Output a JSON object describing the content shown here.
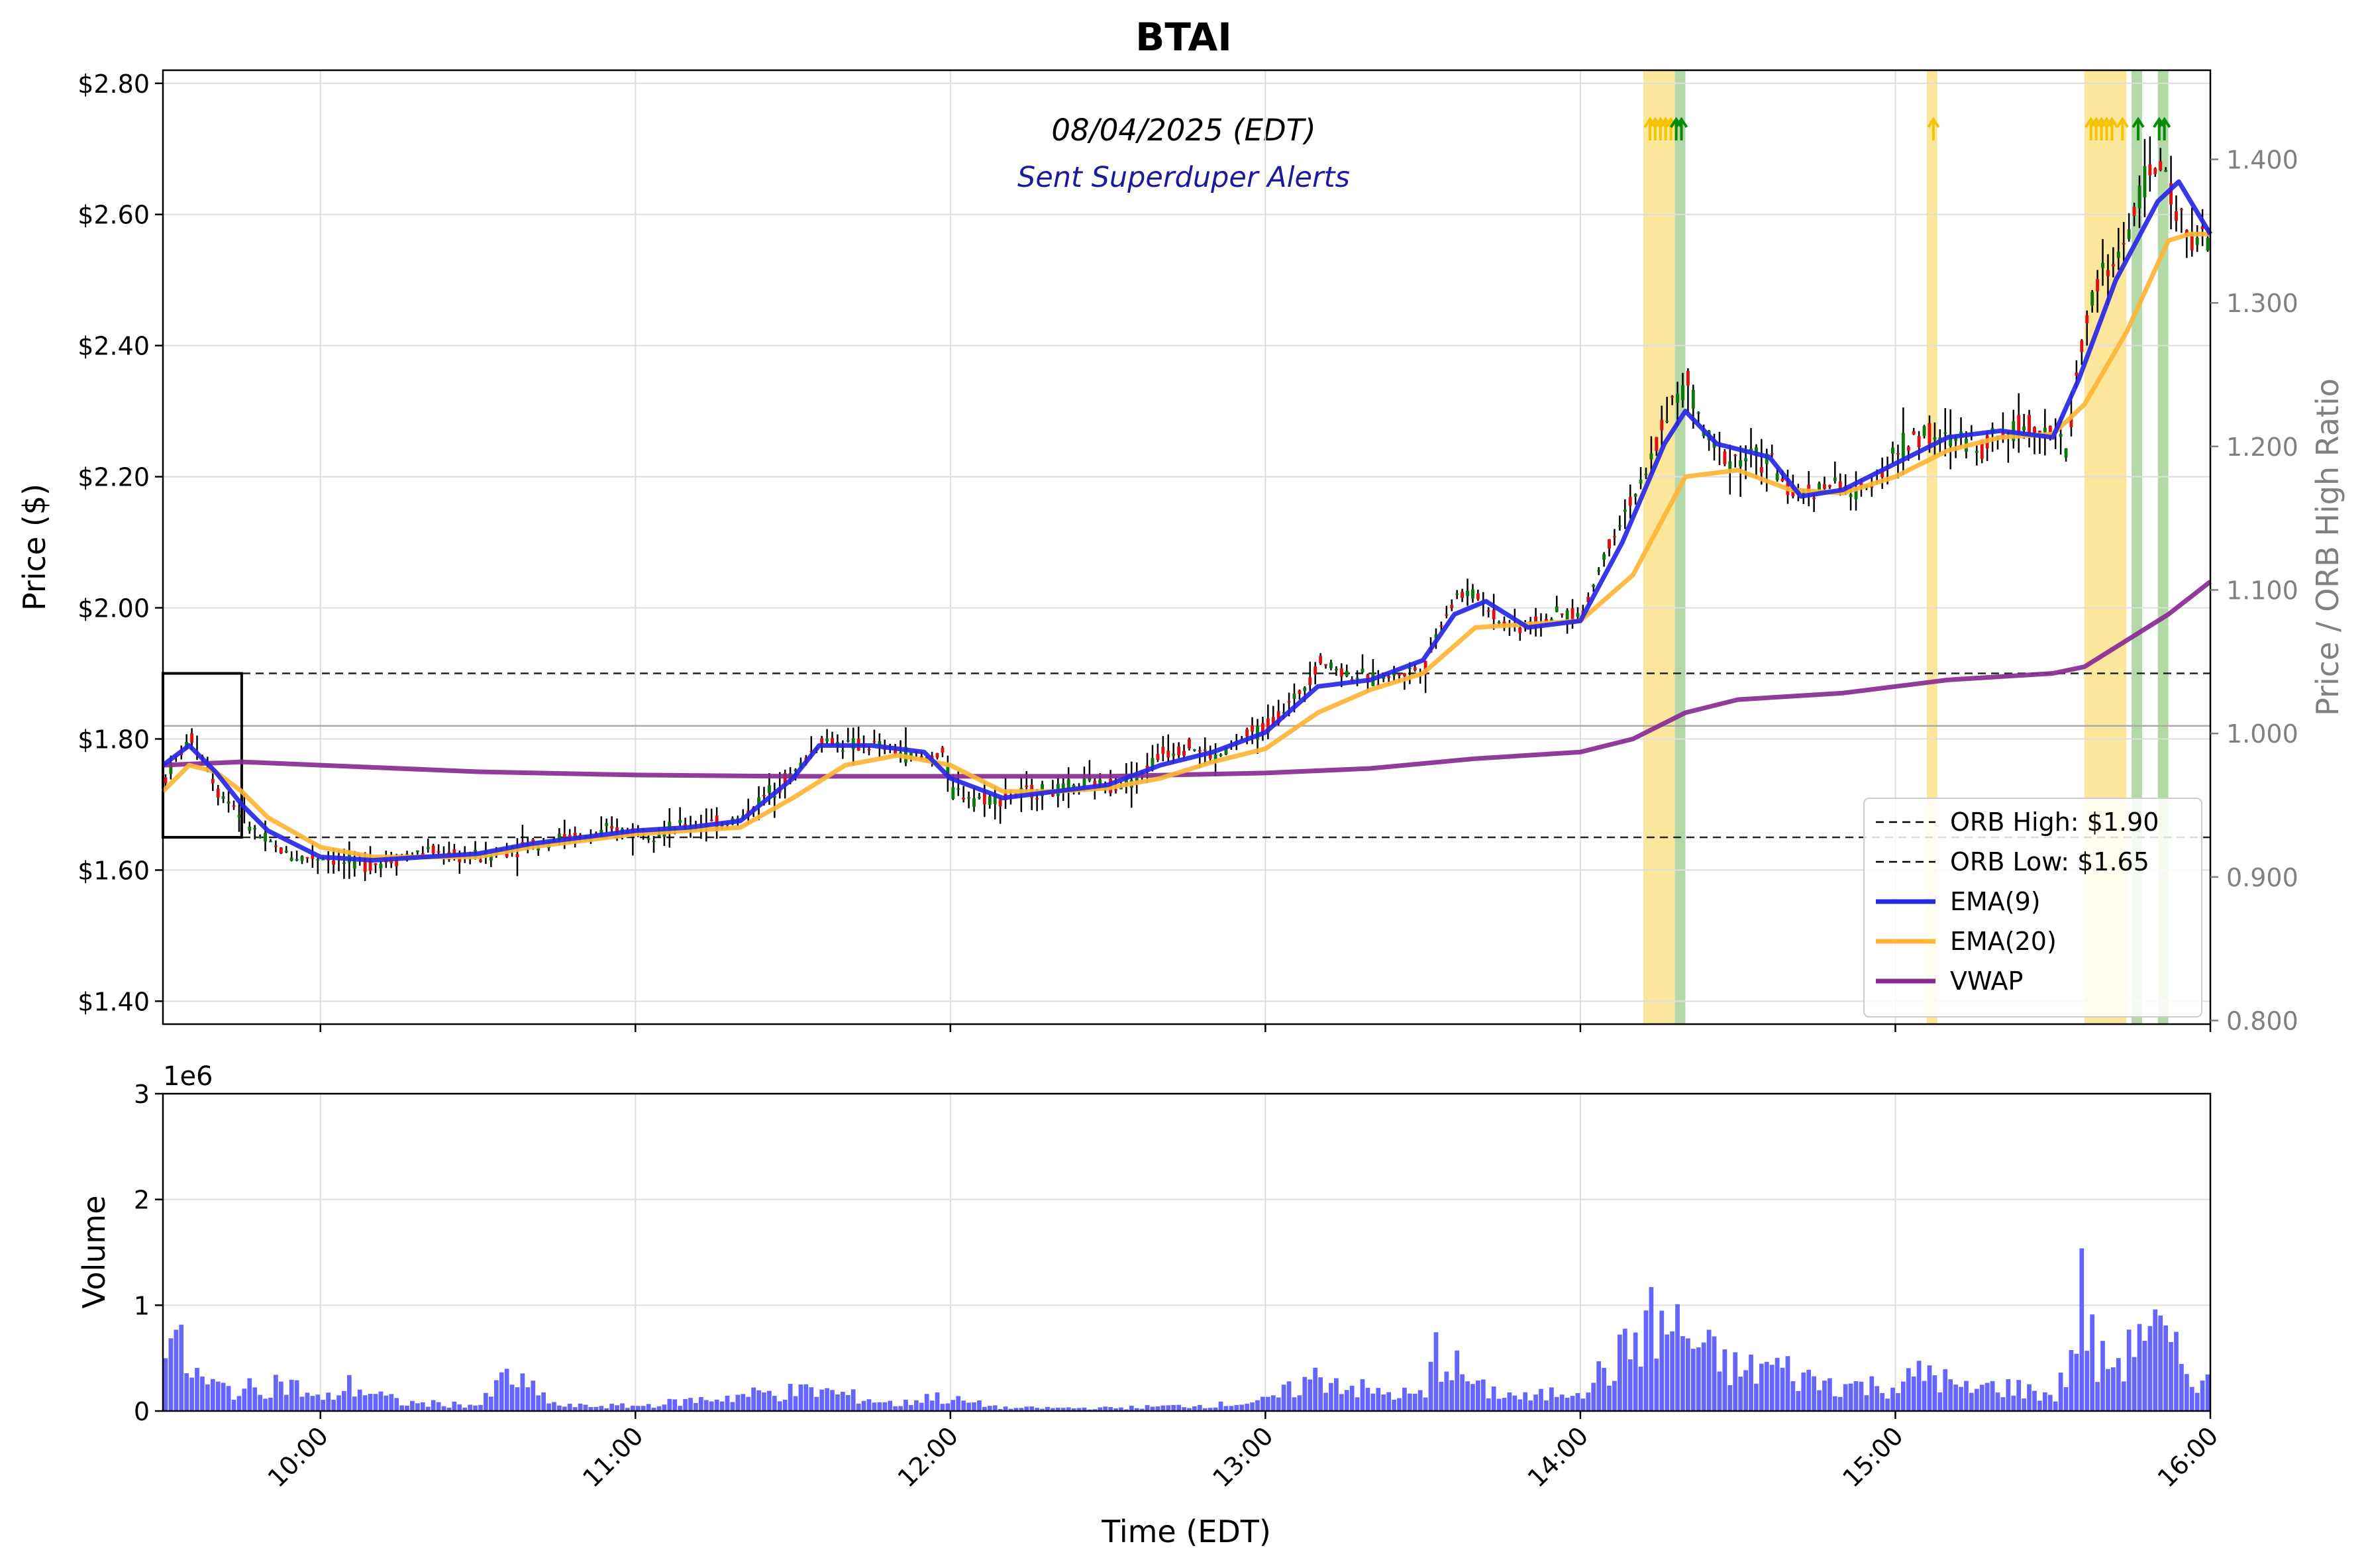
{
  "chart_data": [
    {
      "type": "candlestick",
      "title": "BTAI",
      "date_label": "08/04/2025 (EDT)",
      "subtitle": "Sent Superduper Alerts",
      "ylabel": "Price ($)",
      "y2label": "Price / ORB High Ratio",
      "ylim": [
        1.365,
        2.82
      ],
      "y2lim": [
        0.7975,
        1.4621
      ],
      "xlim": [
        "09:30",
        "16:00"
      ],
      "yticks": [
        "$1.40",
        "$1.60",
        "$1.80",
        "$2.00",
        "$2.20",
        "$2.40",
        "$2.60",
        "$2.80"
      ],
      "ytick_values": [
        1.4,
        1.6,
        1.8,
        2.0,
        2.2,
        2.4,
        2.6,
        2.8
      ],
      "y2ticks": [
        "0.800",
        "0.900",
        "1.000",
        "1.100",
        "1.200",
        "1.300",
        "1.400"
      ],
      "y2tick_values": [
        0.8,
        0.9,
        1.0,
        1.1,
        1.2,
        1.3,
        1.4
      ],
      "grid": true,
      "legend_position": "lower right",
      "legend": [
        {
          "label": "ORB High: $1.90",
          "style": "dashed",
          "color": "#000000"
        },
        {
          "label": "ORB Low: $1.65",
          "style": "dashed",
          "color": "#000000"
        },
        {
          "label": "EMA(9)",
          "style": "solid",
          "color": "#2727e6"
        },
        {
          "label": "EMA(20)",
          "style": "solid",
          "color": "#fcb535"
        },
        {
          "label": "VWAP",
          "style": "solid",
          "color": "#882a92"
        }
      ],
      "orb_high": 1.9,
      "orb_low": 1.65,
      "orb_window": [
        "09:30",
        "09:45"
      ],
      "ratio_reference_price": 1.82,
      "highlight_bands": [
        {
          "start": "14:12",
          "end": "14:18",
          "color": "#fbe28a"
        },
        {
          "start": "14:18",
          "end": "14:20",
          "color": "#a7d29a"
        },
        {
          "start": "15:06",
          "end": "15:08",
          "color": "#fbe28a"
        },
        {
          "start": "15:36",
          "end": "15:42",
          "color": "#fbe28a"
        },
        {
          "start": "15:42",
          "end": "15:44",
          "color": "#fbe28a"
        },
        {
          "start": "15:45",
          "end": "15:47",
          "color": "#a7d29a"
        },
        {
          "start": "15:50",
          "end": "15:52",
          "color": "#a7d29a"
        }
      ],
      "alert_markers": [
        {
          "time": "14:13",
          "color": "#f5c400"
        },
        {
          "time": "14:14",
          "color": "#f5c400"
        },
        {
          "time": "14:15",
          "color": "#f5c400"
        },
        {
          "time": "14:16",
          "color": "#f5c400"
        },
        {
          "time": "14:17",
          "color": "#f5c400"
        },
        {
          "time": "14:18",
          "color": "#0a8a0a"
        },
        {
          "time": "14:19",
          "color": "#0a8a0a"
        },
        {
          "time": "15:07",
          "color": "#f5c400"
        },
        {
          "time": "15:37",
          "color": "#f5c400"
        },
        {
          "time": "15:38",
          "color": "#f5c400"
        },
        {
          "time": "15:39",
          "color": "#f5c400"
        },
        {
          "time": "15:40",
          "color": "#f5c400"
        },
        {
          "time": "15:41",
          "color": "#f5c400"
        },
        {
          "time": "15:43",
          "color": "#f5c400"
        },
        {
          "time": "15:46",
          "color": "#0a8a0a"
        },
        {
          "time": "15:50",
          "color": "#0a8a0a"
        },
        {
          "time": "15:51",
          "color": "#0a8a0a"
        }
      ],
      "price_path": [
        [
          "09:30",
          1.74
        ],
        [
          "09:32",
          1.77
        ],
        [
          "09:35",
          1.8
        ],
        [
          "09:38",
          1.76
        ],
        [
          "09:40",
          1.72
        ],
        [
          "09:43",
          1.7
        ],
        [
          "09:45",
          1.68
        ],
        [
          "09:48",
          1.65
        ],
        [
          "09:52",
          1.63
        ],
        [
          "09:55",
          1.62
        ],
        [
          "10:00",
          1.62
        ],
        [
          "10:05",
          1.61
        ],
        [
          "10:10",
          1.61
        ],
        [
          "10:15",
          1.62
        ],
        [
          "10:20",
          1.63
        ],
        [
          "10:25",
          1.62
        ],
        [
          "10:30",
          1.62
        ],
        [
          "10:35",
          1.63
        ],
        [
          "10:40",
          1.64
        ],
        [
          "10:45",
          1.65
        ],
        [
          "10:50",
          1.65
        ],
        [
          "10:55",
          1.66
        ],
        [
          "11:00",
          1.66
        ],
        [
          "11:05",
          1.66
        ],
        [
          "11:10",
          1.67
        ],
        [
          "11:15",
          1.67
        ],
        [
          "11:20",
          1.68
        ],
        [
          "11:25",
          1.72
        ],
        [
          "11:30",
          1.75
        ],
        [
          "11:35",
          1.8
        ],
        [
          "11:40",
          1.79
        ],
        [
          "11:45",
          1.79
        ],
        [
          "11:50",
          1.78
        ],
        [
          "11:55",
          1.77
        ],
        [
          "11:58",
          1.78
        ],
        [
          "12:00",
          1.72
        ],
        [
          "12:05",
          1.71
        ],
        [
          "12:10",
          1.71
        ],
        [
          "12:15",
          1.72
        ],
        [
          "12:20",
          1.72
        ],
        [
          "12:25",
          1.73
        ],
        [
          "12:30",
          1.73
        ],
        [
          "12:35",
          1.74
        ],
        [
          "12:40",
          1.78
        ],
        [
          "12:45",
          1.79
        ],
        [
          "12:50",
          1.77
        ],
        [
          "12:55",
          1.8
        ],
        [
          "13:00",
          1.82
        ],
        [
          "13:05",
          1.86
        ],
        [
          "13:10",
          1.92
        ],
        [
          "13:15",
          1.9
        ],
        [
          "13:20",
          1.89
        ],
        [
          "13:25",
          1.9
        ],
        [
          "13:30",
          1.91
        ],
        [
          "13:33",
          1.98
        ],
        [
          "13:36",
          2.02
        ],
        [
          "13:40",
          2.02
        ],
        [
          "13:44",
          1.98
        ],
        [
          "13:48",
          1.97
        ],
        [
          "13:52",
          1.98
        ],
        [
          "13:56",
          1.99
        ],
        [
          "14:00",
          1.99
        ],
        [
          "14:04",
          2.08
        ],
        [
          "14:08",
          2.15
        ],
        [
          "14:12",
          2.2
        ],
        [
          "14:16",
          2.3
        ],
        [
          "14:20",
          2.34
        ],
        [
          "14:24",
          2.25
        ],
        [
          "14:28",
          2.23
        ],
        [
          "14:32",
          2.23
        ],
        [
          "14:36",
          2.22
        ],
        [
          "14:40",
          2.17
        ],
        [
          "14:44",
          2.18
        ],
        [
          "14:48",
          2.19
        ],
        [
          "14:52",
          2.17
        ],
        [
          "14:56",
          2.2
        ],
        [
          "15:00",
          2.24
        ],
        [
          "15:05",
          2.27
        ],
        [
          "15:08",
          2.25
        ],
        [
          "15:12",
          2.26
        ],
        [
          "15:16",
          2.25
        ],
        [
          "15:20",
          2.27
        ],
        [
          "15:24",
          2.28
        ],
        [
          "15:28",
          2.28
        ],
        [
          "15:32",
          2.24
        ],
        [
          "15:35",
          2.4
        ],
        [
          "15:38",
          2.5
        ],
        [
          "15:41",
          2.52
        ],
        [
          "15:44",
          2.58
        ],
        [
          "15:47",
          2.65
        ],
        [
          "15:50",
          2.68
        ],
        [
          "15:53",
          2.6
        ],
        [
          "15:56",
          2.57
        ],
        [
          "16:00",
          2.55
        ]
      ],
      "ema9": [
        [
          "09:30",
          1.76
        ],
        [
          "09:35",
          1.79
        ],
        [
          "09:40",
          1.75
        ],
        [
          "09:45",
          1.7
        ],
        [
          "09:50",
          1.66
        ],
        [
          "10:00",
          1.62
        ],
        [
          "10:10",
          1.615
        ],
        [
          "10:20",
          1.62
        ],
        [
          "10:30",
          1.625
        ],
        [
          "10:40",
          1.64
        ],
        [
          "10:50",
          1.65
        ],
        [
          "11:00",
          1.66
        ],
        [
          "11:10",
          1.665
        ],
        [
          "11:20",
          1.675
        ],
        [
          "11:30",
          1.74
        ],
        [
          "11:35",
          1.79
        ],
        [
          "11:45",
          1.79
        ],
        [
          "11:55",
          1.78
        ],
        [
          "12:00",
          1.74
        ],
        [
          "12:10",
          1.71
        ],
        [
          "12:20",
          1.72
        ],
        [
          "12:30",
          1.73
        ],
        [
          "12:40",
          1.76
        ],
        [
          "12:50",
          1.78
        ],
        [
          "13:00",
          1.81
        ],
        [
          "13:10",
          1.88
        ],
        [
          "13:20",
          1.89
        ],
        [
          "13:30",
          1.92
        ],
        [
          "13:36",
          1.99
        ],
        [
          "13:42",
          2.01
        ],
        [
          "13:50",
          1.97
        ],
        [
          "14:00",
          1.98
        ],
        [
          "14:08",
          2.1
        ],
        [
          "14:16",
          2.25
        ],
        [
          "14:20",
          2.3
        ],
        [
          "14:26",
          2.25
        ],
        [
          "14:36",
          2.23
        ],
        [
          "14:42",
          2.17
        ],
        [
          "14:50",
          2.18
        ],
        [
          "15:00",
          2.22
        ],
        [
          "15:10",
          2.26
        ],
        [
          "15:20",
          2.27
        ],
        [
          "15:30",
          2.26
        ],
        [
          "15:35",
          2.35
        ],
        [
          "15:42",
          2.5
        ],
        [
          "15:50",
          2.62
        ],
        [
          "15:54",
          2.65
        ],
        [
          "16:00",
          2.57
        ]
      ],
      "ema20": [
        [
          "09:30",
          1.72
        ],
        [
          "09:35",
          1.76
        ],
        [
          "09:40",
          1.75
        ],
        [
          "09:45",
          1.72
        ],
        [
          "09:50",
          1.68
        ],
        [
          "10:00",
          1.635
        ],
        [
          "10:10",
          1.62
        ],
        [
          "10:20",
          1.62
        ],
        [
          "10:30",
          1.62
        ],
        [
          "10:40",
          1.635
        ],
        [
          "10:50",
          1.645
        ],
        [
          "11:00",
          1.655
        ],
        [
          "11:10",
          1.66
        ],
        [
          "11:20",
          1.665
        ],
        [
          "11:30",
          1.71
        ],
        [
          "11:40",
          1.76
        ],
        [
          "11:50",
          1.775
        ],
        [
          "12:00",
          1.76
        ],
        [
          "12:10",
          1.72
        ],
        [
          "12:20",
          1.72
        ],
        [
          "12:30",
          1.725
        ],
        [
          "12:40",
          1.74
        ],
        [
          "12:50",
          1.765
        ],
        [
          "13:00",
          1.785
        ],
        [
          "13:10",
          1.84
        ],
        [
          "13:20",
          1.875
        ],
        [
          "13:30",
          1.9
        ],
        [
          "13:40",
          1.97
        ],
        [
          "13:50",
          1.975
        ],
        [
          "14:00",
          1.98
        ],
        [
          "14:10",
          2.05
        ],
        [
          "14:20",
          2.2
        ],
        [
          "14:30",
          2.21
        ],
        [
          "14:40",
          2.18
        ],
        [
          "14:50",
          2.175
        ],
        [
          "15:00",
          2.2
        ],
        [
          "15:10",
          2.24
        ],
        [
          "15:20",
          2.26
        ],
        [
          "15:30",
          2.265
        ],
        [
          "15:36",
          2.31
        ],
        [
          "15:44",
          2.42
        ],
        [
          "15:52",
          2.56
        ],
        [
          "15:56",
          2.57
        ],
        [
          "16:00",
          2.57
        ]
      ],
      "vwap": [
        [
          "09:30",
          1.76
        ],
        [
          "09:45",
          1.765
        ],
        [
          "10:00",
          1.76
        ],
        [
          "10:30",
          1.75
        ],
        [
          "11:00",
          1.745
        ],
        [
          "11:30",
          1.743
        ],
        [
          "12:00",
          1.743
        ],
        [
          "12:30",
          1.743
        ],
        [
          "13:00",
          1.748
        ],
        [
          "13:20",
          1.755
        ],
        [
          "13:40",
          1.77
        ],
        [
          "14:00",
          1.78
        ],
        [
          "14:10",
          1.8
        ],
        [
          "14:20",
          1.84
        ],
        [
          "14:30",
          1.86
        ],
        [
          "14:50",
          1.87
        ],
        [
          "15:10",
          1.89
        ],
        [
          "15:30",
          1.9
        ],
        [
          "15:36",
          1.91
        ],
        [
          "15:44",
          1.95
        ],
        [
          "15:52",
          1.99
        ],
        [
          "16:00",
          2.04
        ]
      ]
    },
    {
      "type": "bar",
      "ylabel": "Volume",
      "xlabel": "Time (EDT)",
      "y_offset_label": "1e6",
      "ylim": [
        0,
        3
      ],
      "yticks": [
        "0",
        "1",
        "2",
        "3"
      ],
      "ytick_values": [
        0,
        1,
        2,
        3
      ],
      "xticks": [
        "10:00",
        "11:00",
        "12:00",
        "13:00",
        "14:00",
        "15:00",
        "16:00"
      ],
      "xtick_values": [
        "10:00",
        "11:00",
        "12:00",
        "13:00",
        "14:00",
        "15:00",
        "16:00"
      ],
      "color": "#6464ff",
      "volume_profile_millions": [
        [
          "09:30",
          0.85
        ],
        [
          "09:32",
          0.7
        ],
        [
          "09:34",
          0.45
        ],
        [
          "09:38",
          0.25
        ],
        [
          "09:45",
          0.2
        ],
        [
          "09:52",
          0.3
        ],
        [
          "10:00",
          0.1
        ],
        [
          "10:05",
          0.25
        ],
        [
          "10:15",
          0.08
        ],
        [
          "10:30",
          0.06
        ],
        [
          "10:35",
          0.35
        ],
        [
          "10:45",
          0.05
        ],
        [
          "11:00",
          0.05
        ],
        [
          "11:25",
          0.18
        ],
        [
          "11:35",
          0.2
        ],
        [
          "11:50",
          0.06
        ],
        [
          "11:55",
          0.15
        ],
        [
          "12:10",
          0.03
        ],
        [
          "12:30",
          0.03
        ],
        [
          "12:50",
          0.06
        ],
        [
          "13:00",
          0.1
        ],
        [
          "13:10",
          0.35
        ],
        [
          "13:20",
          0.18
        ],
        [
          "13:30",
          0.15
        ],
        [
          "13:32",
          0.6
        ],
        [
          "13:40",
          0.22
        ],
        [
          "13:50",
          0.12
        ],
        [
          "14:00",
          0.25
        ],
        [
          "14:06",
          0.45
        ],
        [
          "14:12",
          0.85
        ],
        [
          "14:18",
          0.8
        ],
        [
          "14:24",
          0.55
        ],
        [
          "14:30",
          0.38
        ],
        [
          "14:36",
          0.45
        ],
        [
          "14:44",
          0.3
        ],
        [
          "14:52",
          0.25
        ],
        [
          "15:00",
          0.25
        ],
        [
          "15:06",
          0.4
        ],
        [
          "15:12",
          0.2
        ],
        [
          "15:20",
          0.25
        ],
        [
          "15:30",
          0.15
        ],
        [
          "15:33",
          0.5
        ],
        [
          "15:35",
          1.15
        ],
        [
          "15:38",
          0.45
        ],
        [
          "15:44",
          0.55
        ],
        [
          "15:46",
          0.95
        ],
        [
          "15:50",
          0.7
        ],
        [
          "15:55",
          0.4
        ],
        [
          "16:00",
          0.25
        ]
      ]
    }
  ]
}
